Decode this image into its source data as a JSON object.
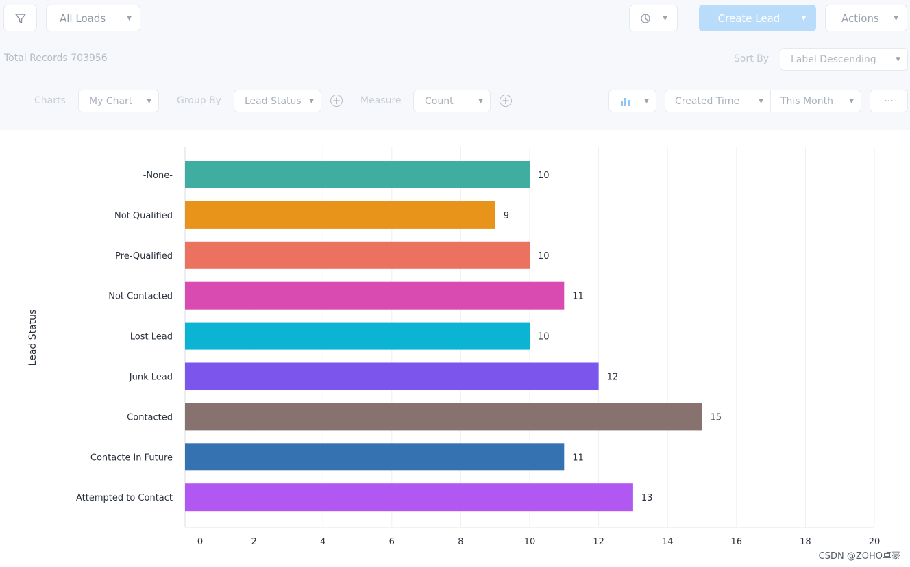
{
  "toolbar": {
    "view_select": "All Loads",
    "create_button": "Create Lead",
    "actions_button": "Actions"
  },
  "records": {
    "total_label": "Total Records 703956"
  },
  "sort": {
    "label": "Sort By",
    "value": "Label Descending"
  },
  "chart_controls": {
    "charts_label": "Charts",
    "chart_select": "My Chart",
    "group_by_label": "Group By",
    "group_by_select": "Lead Status",
    "measure_label": "Measure",
    "measure_select": "Count",
    "time_field_select": "Created Time",
    "period_select": "This Month",
    "more_label": "···"
  },
  "watermark": "CSDN @ZOHO卓豪",
  "chart_data": {
    "type": "bar",
    "orientation": "horizontal",
    "ylabel": "Lead Status",
    "xlabel": "",
    "categories": [
      "-None-",
      "Not Qualified",
      "Pre-Qualified",
      "Not Contacted",
      "Lost Lead",
      "Junk Lead",
      "Contacted",
      "Contacte in Future",
      "Attempted to Contact"
    ],
    "values": [
      10,
      9,
      10,
      11,
      10,
      12,
      15,
      11,
      13
    ],
    "colors": [
      "#3fada0",
      "#e8941b",
      "#ea725f",
      "#d94bb0",
      "#0bb4d2",
      "#7b55ec",
      "#88726f",
      "#3572b2",
      "#b157f2"
    ],
    "xlim": [
      0,
      20
    ],
    "xticks": [
      0,
      2,
      4,
      6,
      8,
      10,
      12,
      14,
      16,
      18,
      20
    ],
    "grid": true,
    "data_labels": true
  }
}
